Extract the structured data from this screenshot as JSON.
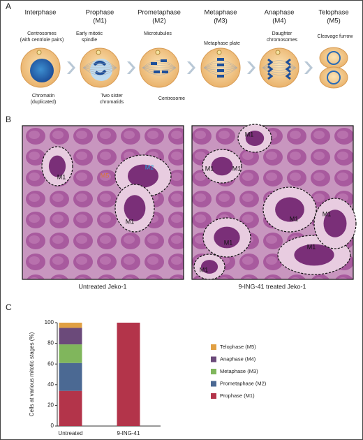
{
  "panel_a": {
    "label": "A",
    "stages": [
      {
        "title": [
          "Interphase"
        ]
      },
      {
        "title": [
          "Prophase",
          "(M1)"
        ]
      },
      {
        "title": [
          "Prometaphase",
          "(M2)"
        ]
      },
      {
        "title": [
          "Metaphase",
          "(M3)"
        ]
      },
      {
        "title": [
          "Anaphase",
          "(M4)"
        ]
      },
      {
        "title": [
          "Telophase",
          "(M5)"
        ]
      }
    ],
    "annotations": [
      [
        "Centrosomes",
        "(with centriole pairs)"
      ],
      [
        "Chromatin",
        "(duplicated)"
      ],
      [
        "Early mitotic",
        "spindle"
      ],
      [
        "Two sister",
        "chromatids"
      ],
      [
        "Microtubules"
      ],
      [
        "Centrosome"
      ],
      [
        "Metaphase plate"
      ],
      [
        "Daughter",
        "chromosomes"
      ],
      [
        "Cleavage furrow"
      ]
    ]
  },
  "panel_b": {
    "label": "B",
    "images": [
      {
        "caption": "Untreated Jeko-1",
        "labels": [
          "M1",
          "M5",
          "M2",
          "M1"
        ]
      },
      {
        "caption": "9-ING-41 treated Jeko-1",
        "labels": [
          "M1",
          "M1",
          "M1",
          "M1",
          "M1",
          "M1",
          "M1",
          "M1"
        ]
      }
    ]
  },
  "panel_c": {
    "label": "C"
  },
  "chart_data": {
    "type": "bar",
    "stacked": true,
    "y_label": "Cells at various mitotic stages (%)",
    "categories": [
      "Untreated",
      "9-ING-41"
    ],
    "series": [
      {
        "name": "Prophase (M1)",
        "color": "#b3344a",
        "values": [
          34,
          100
        ]
      },
      {
        "name": "Prometaphase (M2)",
        "color": "#4b6993",
        "values": [
          27,
          0
        ]
      },
      {
        "name": "Metaphase (M3)",
        "color": "#80b65c",
        "values": [
          18,
          0
        ]
      },
      {
        "name": "Anaphase (M4)",
        "color": "#6b4a7a",
        "values": [
          16,
          0
        ]
      },
      {
        "name": "Telophase (M5)",
        "color": "#e1a043",
        "values": [
          5,
          0
        ]
      }
    ],
    "ylim": [
      0,
      100
    ],
    "yticks": [
      0,
      20,
      40,
      60,
      80,
      100
    ],
    "legend": "right"
  }
}
